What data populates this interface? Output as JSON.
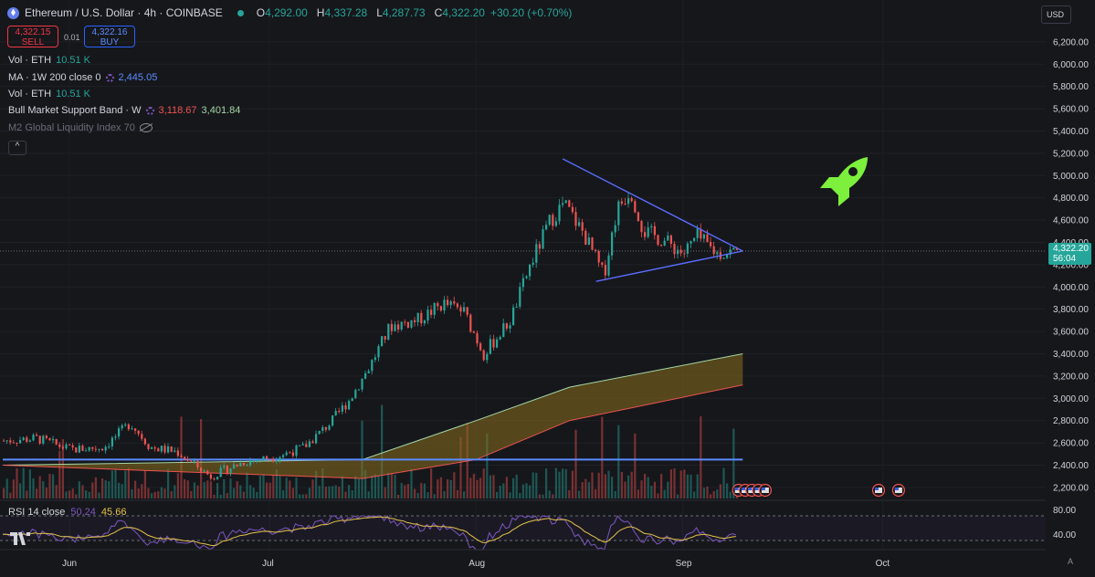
{
  "header": {
    "symbol_title": "Ethereum / U.S. Dollar · 4h · COINBASE",
    "ohlc": [
      {
        "key": "O",
        "value": "4,292.00"
      },
      {
        "key": "H",
        "value": "4,337.28"
      },
      {
        "key": "L",
        "value": "4,287.73"
      },
      {
        "key": "C",
        "value": "4,322.20"
      }
    ],
    "change": "+30.20 (+0.70%)"
  },
  "trade": {
    "sell_price": "4,322.15",
    "sell_label": "SELL",
    "spread": "0.01",
    "buy_price": "4,322.16",
    "buy_label": "BUY"
  },
  "indicators": [
    {
      "name": "Vol · ETH",
      "values": [
        "10.51 K"
      ]
    },
    {
      "name": "MA · 1W 200 close 0",
      "values": [
        "2,445.05"
      ]
    },
    {
      "name": "Vol · ETH",
      "values": [
        "10.51 K"
      ]
    },
    {
      "name": "Bull Market Support Band · W",
      "values": [
        "3,118.67",
        "3,401.84"
      ]
    },
    {
      "name": "M2 Global Liquidity Index 70",
      "values": []
    }
  ],
  "collapse_icon": "^",
  "currency": "USD",
  "last_price": {
    "price": "4,322.20",
    "countdown": "56:04"
  },
  "rsi": {
    "name": "RSI 14 close",
    "value1": "50.24",
    "value2": "45.66",
    "levels": [
      "80.00",
      "40.00"
    ]
  },
  "auto_label": "A",
  "colors": {
    "up": "#26a69a",
    "down": "#ef5350",
    "background": "#16171b",
    "trendline": "#5b6cff",
    "band_fill": "#8a6d1e",
    "rocket": "#7cf03c",
    "rsi_line": "#7e57c2",
    "rsi_ma": "#e6c34a"
  },
  "icons": [
    "ethereum-icon",
    "gear-icon",
    "eye-off-icon",
    "rocket-icon",
    "tradingview-logo",
    "us-flag-icon"
  ],
  "chart_data": {
    "type": "candlestick",
    "title": "Ethereum / U.S. Dollar · 4h · COINBASE",
    "y_ticks": [
      "6,200.00",
      "6,000.00",
      "5,800.00",
      "5,600.00",
      "5,400.00",
      "5,200.00",
      "5,000.00",
      "4,800.00",
      "4,600.00",
      "4,400.00",
      "4,200.00",
      "4,000.00",
      "3,800.00",
      "3,600.00",
      "3,400.00",
      "3,200.00",
      "3,000.00",
      "2,800.00",
      "2,600.00",
      "2,400.00",
      "2,200.00"
    ],
    "x_ticks": [
      "Jun",
      "Jul",
      "Aug",
      "Sep",
      "Oct"
    ],
    "ylim": [
      2200,
      6300
    ],
    "price_path": [
      [
        "2025-05-22",
        2620
      ],
      [
        "2025-05-27",
        2640
      ],
      [
        "2025-06-01",
        2540
      ],
      [
        "2025-06-06",
        2560
      ],
      [
        "2025-06-10",
        2780
      ],
      [
        "2025-06-13",
        2560
      ],
      [
        "2025-06-17",
        2520
      ],
      [
        "2025-06-22",
        2300
      ],
      [
        "2025-06-27",
        2430
      ],
      [
        "2025-07-02",
        2480
      ],
      [
        "2025-07-06",
        2560
      ],
      [
        "2025-07-10",
        2780
      ],
      [
        "2025-07-13",
        3000
      ],
      [
        "2025-07-16",
        3300
      ],
      [
        "2025-07-19",
        3650
      ],
      [
        "2025-07-23",
        3700
      ],
      [
        "2025-07-27",
        3850
      ],
      [
        "2025-07-30",
        3780
      ],
      [
        "2025-08-02",
        3400
      ],
      [
        "2025-08-06",
        3700
      ],
      [
        "2025-08-09",
        4200
      ],
      [
        "2025-08-12",
        4600
      ],
      [
        "2025-08-14",
        4750
      ],
      [
        "2025-08-17",
        4480
      ],
      [
        "2025-08-20",
        4100
      ],
      [
        "2025-08-22",
        4700
      ],
      [
        "2025-08-24",
        4880
      ],
      [
        "2025-08-26",
        4500
      ],
      [
        "2025-08-29",
        4420
      ],
      [
        "2025-09-01",
        4300
      ],
      [
        "2025-09-03",
        4450
      ],
      [
        "2025-09-06",
        4300
      ],
      [
        "2025-09-09",
        4322
      ]
    ],
    "triangle": {
      "upper": [
        [
          "2025-08-14",
          5150
        ],
        [
          "2025-09-10",
          4322
        ]
      ],
      "lower": [
        [
          "2025-08-19",
          4050
        ],
        [
          "2025-09-10",
          4322
        ]
      ]
    },
    "ma_line": 2450,
    "bull_band": {
      "upper": [
        [
          "2025-05-22",
          2400
        ],
        [
          "2025-07-15",
          2450
        ],
        [
          "2025-08-01",
          2800
        ],
        [
          "2025-08-15",
          3100
        ],
        [
          "2025-09-10",
          3400
        ]
      ],
      "lower": [
        [
          "2025-05-22",
          2400
        ],
        [
          "2025-07-15",
          2280
        ],
        [
          "2025-08-01",
          2450
        ],
        [
          "2025-08-15",
          2800
        ],
        [
          "2025-09-10",
          3120
        ]
      ]
    },
    "rsi": {
      "levels": [
        80,
        40
      ],
      "last": 50.24,
      "ma_last": 45.66
    }
  }
}
